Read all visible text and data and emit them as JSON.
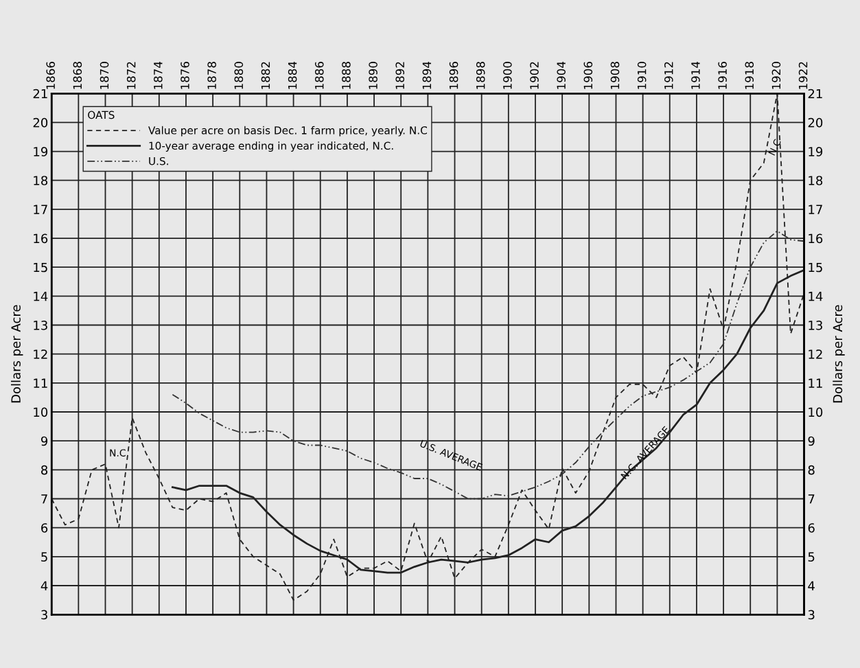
{
  "chart_data": {
    "type": "line",
    "ylabel": "Dollars per Acre",
    "y2label": "Dollars per Acre",
    "legend_title": "OATS",
    "x": [
      1866,
      1867,
      1868,
      1869,
      1870,
      1871,
      1872,
      1873,
      1874,
      1875,
      1876,
      1877,
      1878,
      1879,
      1880,
      1881,
      1882,
      1883,
      1884,
      1885,
      1886,
      1887,
      1888,
      1889,
      1890,
      1891,
      1892,
      1893,
      1894,
      1895,
      1896,
      1897,
      1898,
      1899,
      1900,
      1901,
      1902,
      1903,
      1904,
      1905,
      1906,
      1907,
      1908,
      1909,
      1910,
      1911,
      1912,
      1913,
      1914,
      1915,
      1916,
      1917,
      1918,
      1919,
      1920,
      1921,
      1922
    ],
    "series": [
      {
        "name": "Value per acre on basis Dec. 1 farm price, yearly. N.C",
        "color": "#222222",
        "line_style": "dashed",
        "values": [
          7.0,
          6.1,
          6.3,
          8.0,
          8.2,
          6.0,
          9.8,
          8.6,
          7.7,
          6.7,
          6.6,
          7.0,
          6.9,
          7.2,
          5.6,
          5.0,
          4.7,
          4.4,
          3.5,
          3.8,
          4.4,
          5.6,
          4.3,
          4.6,
          4.6,
          4.85,
          4.5,
          6.15,
          4.8,
          5.7,
          4.25,
          4.8,
          5.25,
          5.0,
          6.1,
          7.3,
          6.6,
          5.95,
          8.05,
          7.2,
          7.95,
          9.25,
          10.5,
          10.95,
          10.95,
          10.5,
          11.6,
          11.9,
          11.35,
          14.25,
          12.85,
          15.2,
          18.0,
          18.6,
          21.0,
          12.7,
          14.1
        ]
      },
      {
        "name": "10-year average ending in year indicated, N.C.",
        "color": "#222222",
        "line_style": "solid",
        "values": [
          null,
          null,
          null,
          null,
          null,
          null,
          null,
          null,
          null,
          7.4,
          7.3,
          7.45,
          7.45,
          7.45,
          7.2,
          7.05,
          6.55,
          6.1,
          5.75,
          5.45,
          5.2,
          5.05,
          4.9,
          4.55,
          4.5,
          4.45,
          4.45,
          4.65,
          4.8,
          4.9,
          4.85,
          4.8,
          4.9,
          4.95,
          5.05,
          5.3,
          5.6,
          5.5,
          5.9,
          6.05,
          6.4,
          6.85,
          7.4,
          7.95,
          8.35,
          8.75,
          9.3,
          9.9,
          10.25,
          11.0,
          11.45,
          12.0,
          12.9,
          13.5,
          14.45,
          14.7,
          14.9
        ]
      },
      {
        "name": "U.S.",
        "color": "#333333",
        "line_style": "dashdot",
        "values": [
          null,
          null,
          null,
          null,
          null,
          null,
          null,
          null,
          null,
          10.6,
          10.3,
          9.95,
          9.7,
          9.45,
          9.3,
          9.3,
          9.35,
          9.3,
          9.0,
          8.85,
          8.85,
          8.75,
          8.65,
          8.4,
          8.25,
          8.05,
          7.9,
          7.7,
          7.7,
          7.5,
          7.25,
          7.0,
          7.0,
          7.15,
          7.1,
          7.25,
          7.4,
          7.6,
          7.85,
          8.25,
          8.8,
          9.3,
          9.75,
          10.2,
          10.55,
          10.7,
          10.85,
          11.1,
          11.4,
          11.7,
          12.35,
          13.75,
          15.0,
          15.85,
          16.25,
          15.95,
          15.9
        ]
      }
    ],
    "annotations": [
      {
        "text": "N.C",
        "x": 1870,
        "y": 8.2
      },
      {
        "text": "U.S. AVERAGE",
        "x": 1893,
        "y": 7.7
      },
      {
        "text": "N.C. AVERAGE",
        "x": 1908,
        "y": 7.4
      },
      {
        "text": "N.C",
        "x": 1919,
        "y": 18.6
      }
    ],
    "xlim": [
      1866,
      1922
    ],
    "xticks": [
      1866,
      1868,
      1870,
      1872,
      1874,
      1876,
      1878,
      1880,
      1882,
      1884,
      1886,
      1888,
      1890,
      1892,
      1894,
      1896,
      1898,
      1900,
      1902,
      1904,
      1906,
      1908,
      1910,
      1912,
      1914,
      1916,
      1918,
      1920,
      1922
    ],
    "ylim": [
      3,
      21
    ],
    "yticks": [
      3,
      4,
      5,
      6,
      7,
      8,
      9,
      10,
      11,
      12,
      13,
      14,
      15,
      16,
      17,
      18,
      19,
      20,
      21
    ],
    "y2lim": [
      3,
      21
    ],
    "y2ticks": [
      3,
      4,
      5,
      6,
      7,
      8,
      9,
      10,
      11,
      12,
      13,
      14,
      15,
      16,
      17,
      18,
      19,
      20,
      21
    ],
    "grid": true,
    "legend": "top left",
    "marker": "none"
  }
}
